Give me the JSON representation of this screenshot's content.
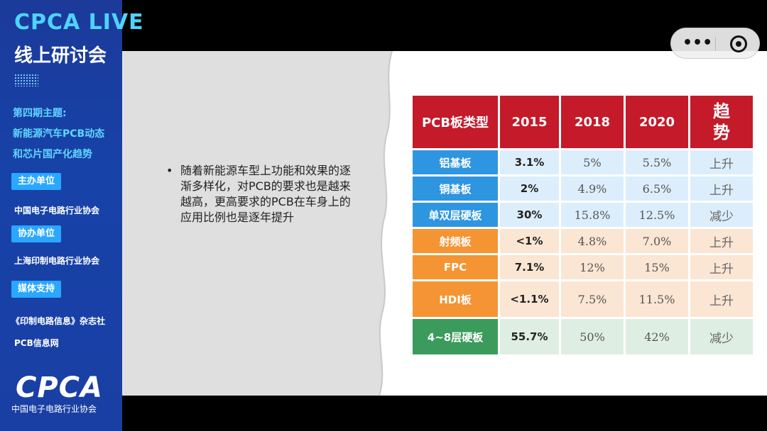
{
  "sidebar": {
    "live_title": "CPCA LIVE",
    "live_sub": "线上研讨会",
    "theme_lines": [
      "第四期主题:",
      "新能源汽车PCB动态",
      "和芯片国产化趋势"
    ],
    "host_label": "主办单位",
    "host_org": "中国电子电路行业协会",
    "co_label": "协办单位",
    "co_org": "上海印制电路行业协会",
    "media_label": "媒体支持",
    "media_orgs": [
      "《印制电路信息》杂志社",
      "PCB信息网"
    ],
    "logo_text": "CPCA",
    "logo_name": "中国电子电路行业协会"
  },
  "slide": {
    "bullet": "随着新能源车型上功能和效果的逐渐多样化，对PCB的要求也是越来越高，更高要求的PCB在车身上的应用比例也是逐年提升",
    "table": {
      "headers": [
        "PCB板类型",
        "2015",
        "2018",
        "2020",
        "趋势"
      ],
      "rows": [
        {
          "type": "铝基板",
          "v2015": "3.1%",
          "v2018": "5%",
          "v2020": "5.5%",
          "trend": "上升",
          "color": "blue"
        },
        {
          "type": "铜基板",
          "v2015": "2%",
          "v2018": "4.9%",
          "v2020": "6.5%",
          "trend": "上升",
          "color": "blue"
        },
        {
          "type": "单双层硬板",
          "v2015": "30%",
          "v2018": "15.8%",
          "v2020": "12.5%",
          "trend": "减少",
          "color": "blue"
        },
        {
          "type": "射频板",
          "v2015": "<1%",
          "v2018": "4.8%",
          "v2020": "7.0%",
          "trend": "上升",
          "color": "orange"
        },
        {
          "type": "FPC",
          "v2015": "7.1%",
          "v2018": "12%",
          "v2020": "15%",
          "trend": "上升",
          "color": "orange"
        },
        {
          "type": "HDI板",
          "v2015": "<1.1%",
          "v2018": "7.5%",
          "v2020": "11.5%",
          "trend": "上升",
          "color": "orange"
        },
        {
          "type": "4~8层硬板",
          "v2015": "55.7%",
          "v2018": "50%",
          "v2020": "42%",
          "trend": "减少",
          "color": "green"
        }
      ]
    }
  },
  "overlay": {
    "more_icon": "more-icon",
    "close_icon": "target-icon",
    "more_glyph": "•••"
  },
  "colors": {
    "sidebar_bg": "#1742a8",
    "accent_cyan": "#4fd3ff",
    "tag_blue": "#2aa7ff",
    "header_red": "#c41a2a",
    "type_blue": "#2e95e0",
    "type_orange": "#f59433",
    "type_green": "#3a9b5c"
  }
}
